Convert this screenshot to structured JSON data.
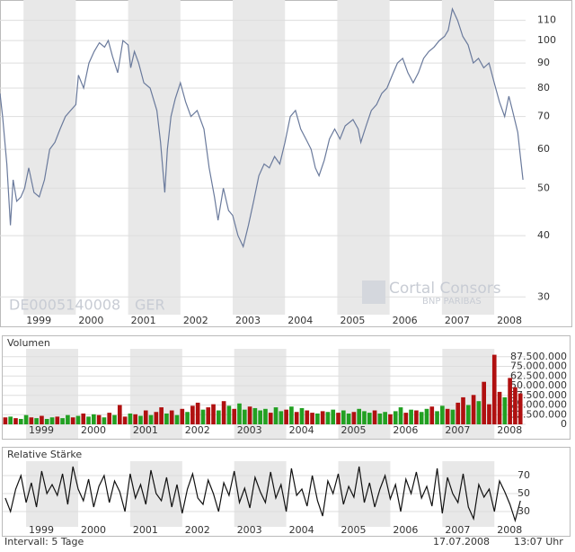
{
  "chart_data": [
    {
      "type": "line",
      "log_scale": true,
      "color": "#6a7a9c",
      "grid": true,
      "band_color": "#e8e8e8",
      "x": [
        1998.55,
        1998.6,
        1998.68,
        1998.75,
        1998.8,
        1998.87,
        1998.95,
        1999.02,
        1999.1,
        1999.2,
        1999.3,
        1999.4,
        1999.5,
        1999.6,
        1999.7,
        1999.8,
        1999.9,
        2000.0,
        2000.05,
        2000.15,
        2000.25,
        2000.35,
        2000.45,
        2000.55,
        2000.62,
        2000.7,
        2000.8,
        2000.9,
        2001.0,
        2001.05,
        2001.12,
        2001.2,
        2001.3,
        2001.42,
        2001.55,
        2001.62,
        2001.7,
        2001.75,
        2001.82,
        2001.9,
        2002.0,
        2002.1,
        2002.2,
        2002.32,
        2002.45,
        2002.55,
        2002.65,
        2002.72,
        2002.82,
        2002.92,
        2003.0,
        2003.1,
        2003.2,
        2003.3,
        2003.4,
        2003.5,
        2003.6,
        2003.7,
        2003.8,
        2003.9,
        2004.0,
        2004.1,
        2004.2,
        2004.3,
        2004.4,
        2004.5,
        2004.58,
        2004.65,
        2004.75,
        2004.85,
        2004.95,
        2005.05,
        2005.15,
        2005.3,
        2005.4,
        2005.45,
        2005.55,
        2005.65,
        2005.75,
        2005.85,
        2005.95,
        2006.05,
        2006.15,
        2006.25,
        2006.35,
        2006.45,
        2006.55,
        2006.65,
        2006.75,
        2006.85,
        2006.95,
        2007.05,
        2007.12,
        2007.2,
        2007.3,
        2007.4,
        2007.5,
        2007.6,
        2007.7,
        2007.8,
        2007.9,
        2008.0,
        2008.1,
        2008.2,
        2008.28,
        2008.35,
        2008.45,
        2008.5,
        2008.55
      ],
      "values": [
        78,
        70,
        56,
        42,
        52,
        47,
        48,
        50,
        55,
        49,
        48,
        52,
        60,
        62,
        66,
        70,
        72,
        74,
        85,
        80,
        90,
        95,
        99,
        97,
        100,
        93,
        86,
        100,
        98,
        88,
        95,
        90,
        82,
        80,
        72,
        62,
        49,
        60,
        70,
        76,
        82,
        75,
        70,
        72,
        66,
        55,
        48,
        43,
        50,
        45,
        44,
        40,
        38,
        42,
        47,
        53,
        56,
        55,
        58,
        56,
        62,
        70,
        72,
        66,
        63,
        60,
        55,
        53,
        57,
        63,
        66,
        63,
        67,
        69,
        66,
        62,
        67,
        72,
        74,
        78,
        80,
        85,
        90,
        92,
        86,
        82,
        86,
        92,
        95,
        97,
        100,
        102,
        105,
        116,
        110,
        102,
        98,
        90,
        92,
        88,
        90,
        82,
        75,
        70,
        77,
        72,
        65,
        58,
        52
      ],
      "xlim": [
        1998.55,
        2008.6
      ],
      "xticks": [
        1999,
        2000,
        2001,
        2002,
        2003,
        2004,
        2005,
        2006,
        2007,
        2008
      ],
      "ylim": [
        27.6,
        121
      ],
      "yticks": [
        30,
        40,
        50,
        60,
        70,
        80,
        90,
        100,
        110
      ]
    },
    {
      "type": "bar",
      "title": "Volumen",
      "grid": true,
      "band_color": "#e8e8e8",
      "x": [
        1998.6,
        1998.7,
        1998.8,
        1998.9,
        1999.0,
        1999.1,
        1999.2,
        1999.3,
        1999.4,
        1999.5,
        1999.6,
        1999.7,
        1999.8,
        1999.9,
        2000.0,
        2000.1,
        2000.2,
        2000.3,
        2000.4,
        2000.5,
        2000.6,
        2000.7,
        2000.8,
        2000.9,
        2001.0,
        2001.1,
        2001.2,
        2001.3,
        2001.4,
        2001.5,
        2001.6,
        2001.7,
        2001.8,
        2001.9,
        2002.0,
        2002.1,
        2002.2,
        2002.3,
        2002.4,
        2002.5,
        2002.6,
        2002.7,
        2002.8,
        2002.9,
        2003.0,
        2003.1,
        2003.2,
        2003.3,
        2003.4,
        2003.5,
        2003.6,
        2003.7,
        2003.8,
        2003.9,
        2004.0,
        2004.1,
        2004.2,
        2004.3,
        2004.4,
        2004.5,
        2004.6,
        2004.7,
        2004.8,
        2004.9,
        2005.0,
        2005.1,
        2005.2,
        2005.3,
        2005.4,
        2005.5,
        2005.6,
        2005.7,
        2005.8,
        2005.9,
        2006.0,
        2006.1,
        2006.2,
        2006.3,
        2006.4,
        2006.5,
        2006.6,
        2006.7,
        2006.8,
        2006.9,
        2007.0,
        2007.1,
        2007.2,
        2007.3,
        2007.4,
        2007.5,
        2007.6,
        2007.7,
        2007.8,
        2007.9,
        2008.0,
        2008.1,
        2008.2,
        2008.3,
        2008.4,
        2008.5
      ],
      "values": [
        9000000,
        10000000,
        8000000,
        7000000,
        12000000,
        9000000,
        8000000,
        11000000,
        7000000,
        9000000,
        10000000,
        8000000,
        12000000,
        9000000,
        11000000,
        14000000,
        10000000,
        13000000,
        12000000,
        9000000,
        15000000,
        12000000,
        25000000,
        10000000,
        14000000,
        13000000,
        11000000,
        18000000,
        12000000,
        16000000,
        22000000,
        14000000,
        18000000,
        12000000,
        20000000,
        16000000,
        24000000,
        28000000,
        19000000,
        22000000,
        26000000,
        18000000,
        30000000,
        24000000,
        20000000,
        27000000,
        19000000,
        23000000,
        21000000,
        18000000,
        20000000,
        15000000,
        22000000,
        17000000,
        19000000,
        23000000,
        16000000,
        21000000,
        18000000,
        15000000,
        14000000,
        17000000,
        16000000,
        19000000,
        15000000,
        18000000,
        14000000,
        16000000,
        20000000,
        17000000,
        15000000,
        18000000,
        14000000,
        16000000,
        13000000,
        17000000,
        22000000,
        15000000,
        19000000,
        18000000,
        16000000,
        20000000,
        23000000,
        17000000,
        24000000,
        20000000,
        19000000,
        28000000,
        35000000,
        25000000,
        38000000,
        30000000,
        55000000,
        26000000,
        90000000,
        42000000,
        35000000,
        60000000,
        48000000,
        40000000
      ],
      "bar_colors": [
        "#b01010",
        "#22a022",
        "#b01010",
        "#22a022",
        "#22a022",
        "#b01010",
        "#22a022",
        "#b01010",
        "#22a022",
        "#22a022",
        "#b01010",
        "#22a022",
        "#22a022",
        "#b01010",
        "#22a022",
        "#b01010",
        "#22a022",
        "#22a022",
        "#b01010",
        "#22a022",
        "#b01010",
        "#22a022",
        "#b01010",
        "#b01010",
        "#22a022",
        "#b01010",
        "#22a022",
        "#b01010",
        "#22a022",
        "#b01010",
        "#b01010",
        "#22a022",
        "#b01010",
        "#22a022",
        "#b01010",
        "#22a022",
        "#b01010",
        "#b01010",
        "#22a022",
        "#b01010",
        "#b01010",
        "#22a022",
        "#b01010",
        "#22a022",
        "#b01010",
        "#22a022",
        "#22a022",
        "#b01010",
        "#22a022",
        "#22a022",
        "#22a022",
        "#b01010",
        "#22a022",
        "#22a022",
        "#b01010",
        "#22a022",
        "#b01010",
        "#22a022",
        "#b01010",
        "#b01010",
        "#22a022",
        "#b01010",
        "#22a022",
        "#22a022",
        "#b01010",
        "#22a022",
        "#22a022",
        "#b01010",
        "#22a022",
        "#22a022",
        "#22a022",
        "#b01010",
        "#22a022",
        "#22a022",
        "#b01010",
        "#22a022",
        "#22a022",
        "#b01010",
        "#22a022",
        "#b01010",
        "#22a022",
        "#22a022",
        "#b01010",
        "#22a022",
        "#22a022",
        "#b01010",
        "#22a022",
        "#b01010",
        "#b01010",
        "#22a022",
        "#b01010",
        "#22a022",
        "#b01010",
        "#b01010",
        "#b01010",
        "#b01010",
        "#22a022",
        "#b01010",
        "#b01010",
        "#b01010"
      ],
      "xlim": [
        1998.55,
        2008.6
      ],
      "xticks": [
        1999,
        2000,
        2001,
        2002,
        2003,
        2004,
        2005,
        2006,
        2007,
        2008
      ],
      "ylim": [
        0,
        100000000
      ],
      "yticks": [
        0,
        {
          "value": 12500000,
          "label": "12.500.000"
        },
        {
          "value": 25000000,
          "label": "25.000.000"
        },
        {
          "value": 37500000,
          "label": "37.500.000"
        },
        {
          "value": 50000000,
          "label": "50.000.000"
        },
        {
          "value": 62500000,
          "label": "62.500.000"
        },
        {
          "value": 75000000,
          "label": "75.000.000"
        },
        {
          "value": 87500000,
          "label": "87.500.000"
        }
      ]
    },
    {
      "type": "line",
      "title": "Relative Stärke",
      "color": "#111111",
      "grid": true,
      "band_color": "#e8e8e8",
      "x": [
        1998.6,
        1998.7,
        1998.8,
        1998.9,
        1999.0,
        1999.1,
        1999.2,
        1999.3,
        1999.4,
        1999.5,
        1999.6,
        1999.7,
        1999.8,
        1999.9,
        2000.0,
        2000.1,
        2000.2,
        2000.3,
        2000.4,
        2000.5,
        2000.6,
        2000.7,
        2000.8,
        2000.9,
        2001.0,
        2001.1,
        2001.2,
        2001.3,
        2001.4,
        2001.5,
        2001.6,
        2001.7,
        2001.8,
        2001.9,
        2002.0,
        2002.1,
        2002.2,
        2002.3,
        2002.4,
        2002.5,
        2002.6,
        2002.7,
        2002.8,
        2002.9,
        2003.0,
        2003.1,
        2003.2,
        2003.3,
        2003.4,
        2003.5,
        2003.6,
        2003.7,
        2003.8,
        2003.9,
        2004.0,
        2004.1,
        2004.2,
        2004.3,
        2004.4,
        2004.5,
        2004.6,
        2004.7,
        2004.8,
        2004.9,
        2005.0,
        2005.1,
        2005.2,
        2005.3,
        2005.4,
        2005.5,
        2005.6,
        2005.7,
        2005.8,
        2005.9,
        2006.0,
        2006.1,
        2006.2,
        2006.3,
        2006.4,
        2006.5,
        2006.6,
        2006.7,
        2006.8,
        2006.9,
        2007.0,
        2007.1,
        2007.2,
        2007.3,
        2007.4,
        2007.5,
        2007.6,
        2007.7,
        2007.8,
        2007.9,
        2008.0,
        2008.1,
        2008.2,
        2008.3,
        2008.4,
        2008.5
      ],
      "values": [
        45,
        30,
        55,
        70,
        40,
        62,
        35,
        75,
        50,
        60,
        48,
        72,
        38,
        80,
        55,
        42,
        66,
        35,
        58,
        70,
        40,
        64,
        52,
        30,
        72,
        45,
        60,
        38,
        76,
        50,
        42,
        68,
        35,
        60,
        28,
        55,
        72,
        45,
        38,
        65,
        50,
        30,
        62,
        48,
        75,
        40,
        56,
        34,
        68,
        52,
        40,
        74,
        45,
        60,
        30,
        78,
        48,
        55,
        36,
        70,
        42,
        25,
        64,
        50,
        72,
        38,
        58,
        46,
        80,
        40,
        62,
        35,
        55,
        70,
        44,
        60,
        30,
        66,
        50,
        74,
        45,
        58,
        36,
        78,
        28,
        68,
        50,
        40,
        72,
        35,
        22,
        60,
        46,
        55,
        30,
        64,
        52,
        38,
        20,
        42
      ],
      "xlim": [
        1998.55,
        2008.6
      ],
      "xticks": [
        1999,
        2000,
        2001,
        2002,
        2003,
        2004,
        2005,
        2006,
        2007,
        2008
      ],
      "ylim": [
        10,
        90
      ],
      "yticks": [
        30,
        50,
        70
      ]
    }
  ],
  "watermark": {
    "isin": "DE0005140008",
    "exchange": "GER",
    "brand": "Cortal Consors",
    "sub": "BNP PARIBAS"
  },
  "footer": {
    "interval": "Intervall: 5 Tage",
    "date": "17.07.2008",
    "time": "13:07 Uhr"
  }
}
